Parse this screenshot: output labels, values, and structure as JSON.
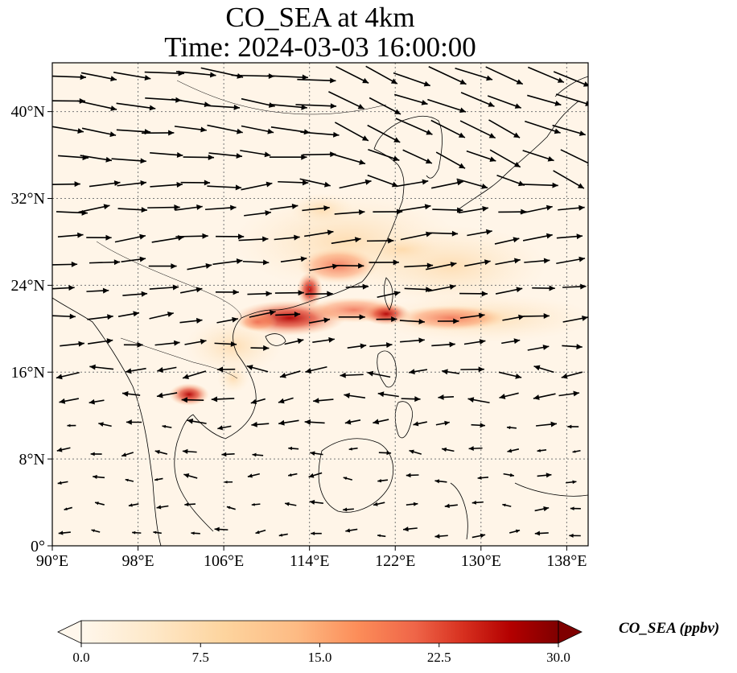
{
  "title": {
    "line1": "CO_SEA at 4km",
    "line2": "Time: 2024-03-03 16:00:00"
  },
  "map": {
    "lon_range": [
      90,
      140
    ],
    "lat_range": [
      0,
      44.5
    ],
    "lon_ticks": [
      "90°E",
      "98°E",
      "106°E",
      "114°E",
      "122°E",
      "130°E",
      "138°E"
    ],
    "lat_ticks": [
      "0°",
      "8°N",
      "16°N",
      "24°N",
      "32°N",
      "40°N"
    ],
    "gridlines": "dotted",
    "field_cmap": "OrRd"
  },
  "colorbar": {
    "label": "CO_SEA (ppbv)",
    "min": 0,
    "max": 30,
    "extend": "both",
    "ticks": [
      "0.0",
      "7.5",
      "15.0",
      "22.5",
      "30.0"
    ]
  },
  "colors": {
    "low": "#fff7ec",
    "mid": "#fc8d59",
    "high": "#7f0000"
  }
}
